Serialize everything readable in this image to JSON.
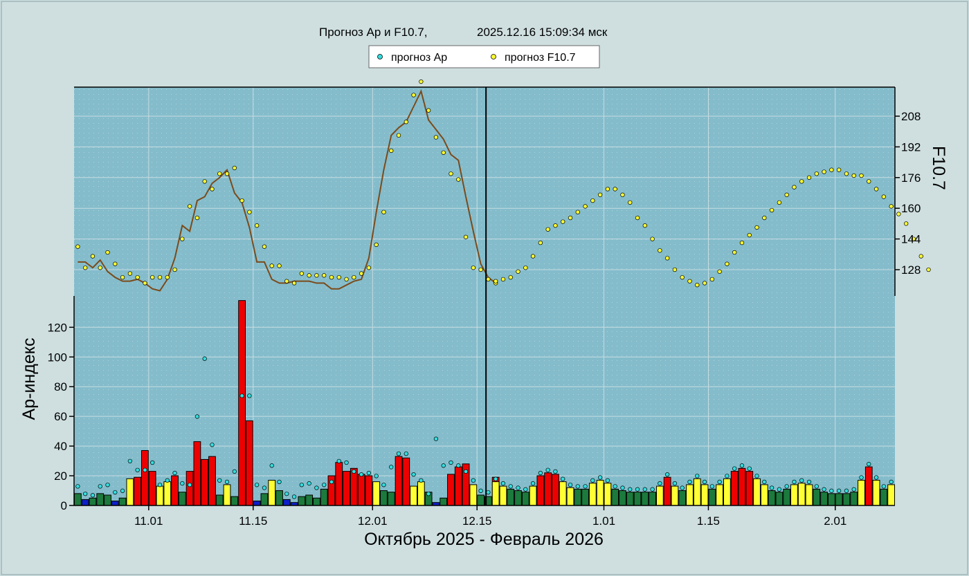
{
  "header": {
    "title": "Прогноз Ap и F10.7,",
    "timestamp": "2025.12.16 15:09:34 мск"
  },
  "legend": {
    "ap_label": "прогноз Ap",
    "f107_label": "прогноз F10.7"
  },
  "axes": {
    "xlabel": "Октябрь 2025 - Февраль 2026",
    "ylabel_ap": "Ap-индекс",
    "ylabel_f107": "F10.7",
    "x_ticks": [
      "11.01",
      "11.15",
      "12.01",
      "12.15",
      "1.01",
      "1.15",
      "2.01"
    ],
    "ap_ticks": [
      "0",
      "20",
      "40",
      "60",
      "80",
      "100",
      "120"
    ],
    "f107_ticks": [
      "128",
      "144",
      "160",
      "176",
      "192",
      "208"
    ]
  },
  "colors": {
    "plot_bg": "#84bccb",
    "ap_low": "#1b7a3c",
    "ap_very_low": "#0d1fc8",
    "ap_moderate": "#ffff33",
    "ap_high": "#ee0000",
    "ap_forecast_dot": "#33dddd",
    "f107_forecast_dot": "#ffff33",
    "f107_observed_line": "#7b4a1a",
    "now_line": "#000000"
  },
  "chart_data": {
    "type": "bar+line+scatter",
    "x_start_date": "2025-10-22",
    "x_end_date": "2026-02-09",
    "ap_ylim": [
      0,
      140
    ],
    "f107_ylim": [
      112,
      222
    ],
    "now_date": "2025-12-16",
    "ap_observed": [
      8,
      4,
      5,
      8,
      7,
      3,
      5,
      18,
      19,
      37,
      23,
      13,
      16,
      20,
      9,
      23,
      43,
      31,
      33,
      7,
      14,
      6,
      138,
      57,
      3,
      8,
      17,
      10,
      4,
      2,
      6,
      7,
      5,
      11,
      20,
      29,
      23,
      25,
      21,
      20,
      16,
      10,
      9,
      33,
      32,
      13,
      16,
      9,
      2,
      5,
      21,
      26,
      28,
      14,
      7,
      6,
      19
    ],
    "ap_forecast": [
      16,
      13,
      11,
      10,
      9,
      13,
      20,
      22,
      21,
      16,
      12,
      11,
      11,
      15,
      17,
      15,
      11,
      10,
      9,
      9,
      9,
      9,
      13,
      19,
      13,
      10,
      14,
      18,
      14,
      11,
      14,
      18,
      23,
      25,
      23,
      18,
      14,
      10,
      9,
      11,
      14,
      15,
      14,
      11,
      9,
      8,
      8,
      8,
      9,
      17,
      26,
      17,
      11,
      14
    ],
    "ap_observed_dots": [
      11,
      6,
      5,
      11,
      12,
      7,
      8,
      28,
      22,
      22,
      27,
      12,
      15,
      20,
      13,
      12,
      58,
      97,
      39,
      15,
      14,
      21,
      72,
      72,
      12,
      10,
      25,
      14,
      6,
      4,
      12,
      13,
      10,
      12,
      14,
      28,
      27,
      21,
      19,
      20,
      18,
      12,
      24,
      33,
      33,
      19,
      15,
      6,
      43,
      25,
      27,
      25,
      21,
      15,
      8,
      7
    ],
    "f107_observed_line": [
      132,
      132,
      129,
      133,
      127,
      124,
      122,
      122,
      123,
      121,
      118,
      117,
      123,
      134,
      151,
      148,
      164,
      166,
      173,
      176,
      180,
      168,
      163,
      150,
      132,
      132,
      123,
      121,
      121,
      122,
      122,
      122,
      121,
      121,
      118,
      118,
      120,
      122,
      123,
      134,
      158,
      180,
      198,
      202,
      205,
      213,
      221,
      206,
      201,
      196,
      188,
      185,
      166,
      148,
      131,
      124,
      121
    ],
    "f107_observed_dots": [
      140,
      129,
      135,
      129,
      137,
      131,
      124,
      126,
      124,
      121,
      124,
      124,
      124,
      128,
      144,
      161,
      155,
      174,
      170,
      178,
      178,
      181,
      164,
      158,
      151,
      140,
      130,
      130,
      122,
      121,
      126,
      125,
      125,
      125,
      124,
      124,
      123,
      124,
      126,
      129,
      141,
      158,
      190,
      198,
      205,
      219,
      226,
      211,
      197,
      189,
      178,
      175,
      145,
      129,
      128,
      123,
      121
    ],
    "f107_forecast": [
      122,
      123,
      124,
      127,
      129,
      135,
      142,
      149,
      151,
      153,
      155,
      158,
      161,
      164,
      167,
      170,
      170,
      167,
      163,
      155,
      151,
      144,
      138,
      134,
      128,
      124,
      122,
      120,
      121,
      123,
      127,
      131,
      137,
      142,
      146,
      150,
      155,
      159,
      163,
      167,
      171,
      174,
      176,
      178,
      179,
      180,
      180,
      178,
      177,
      177,
      174,
      170,
      166,
      161,
      157,
      152,
      144,
      135,
      128
    ]
  }
}
